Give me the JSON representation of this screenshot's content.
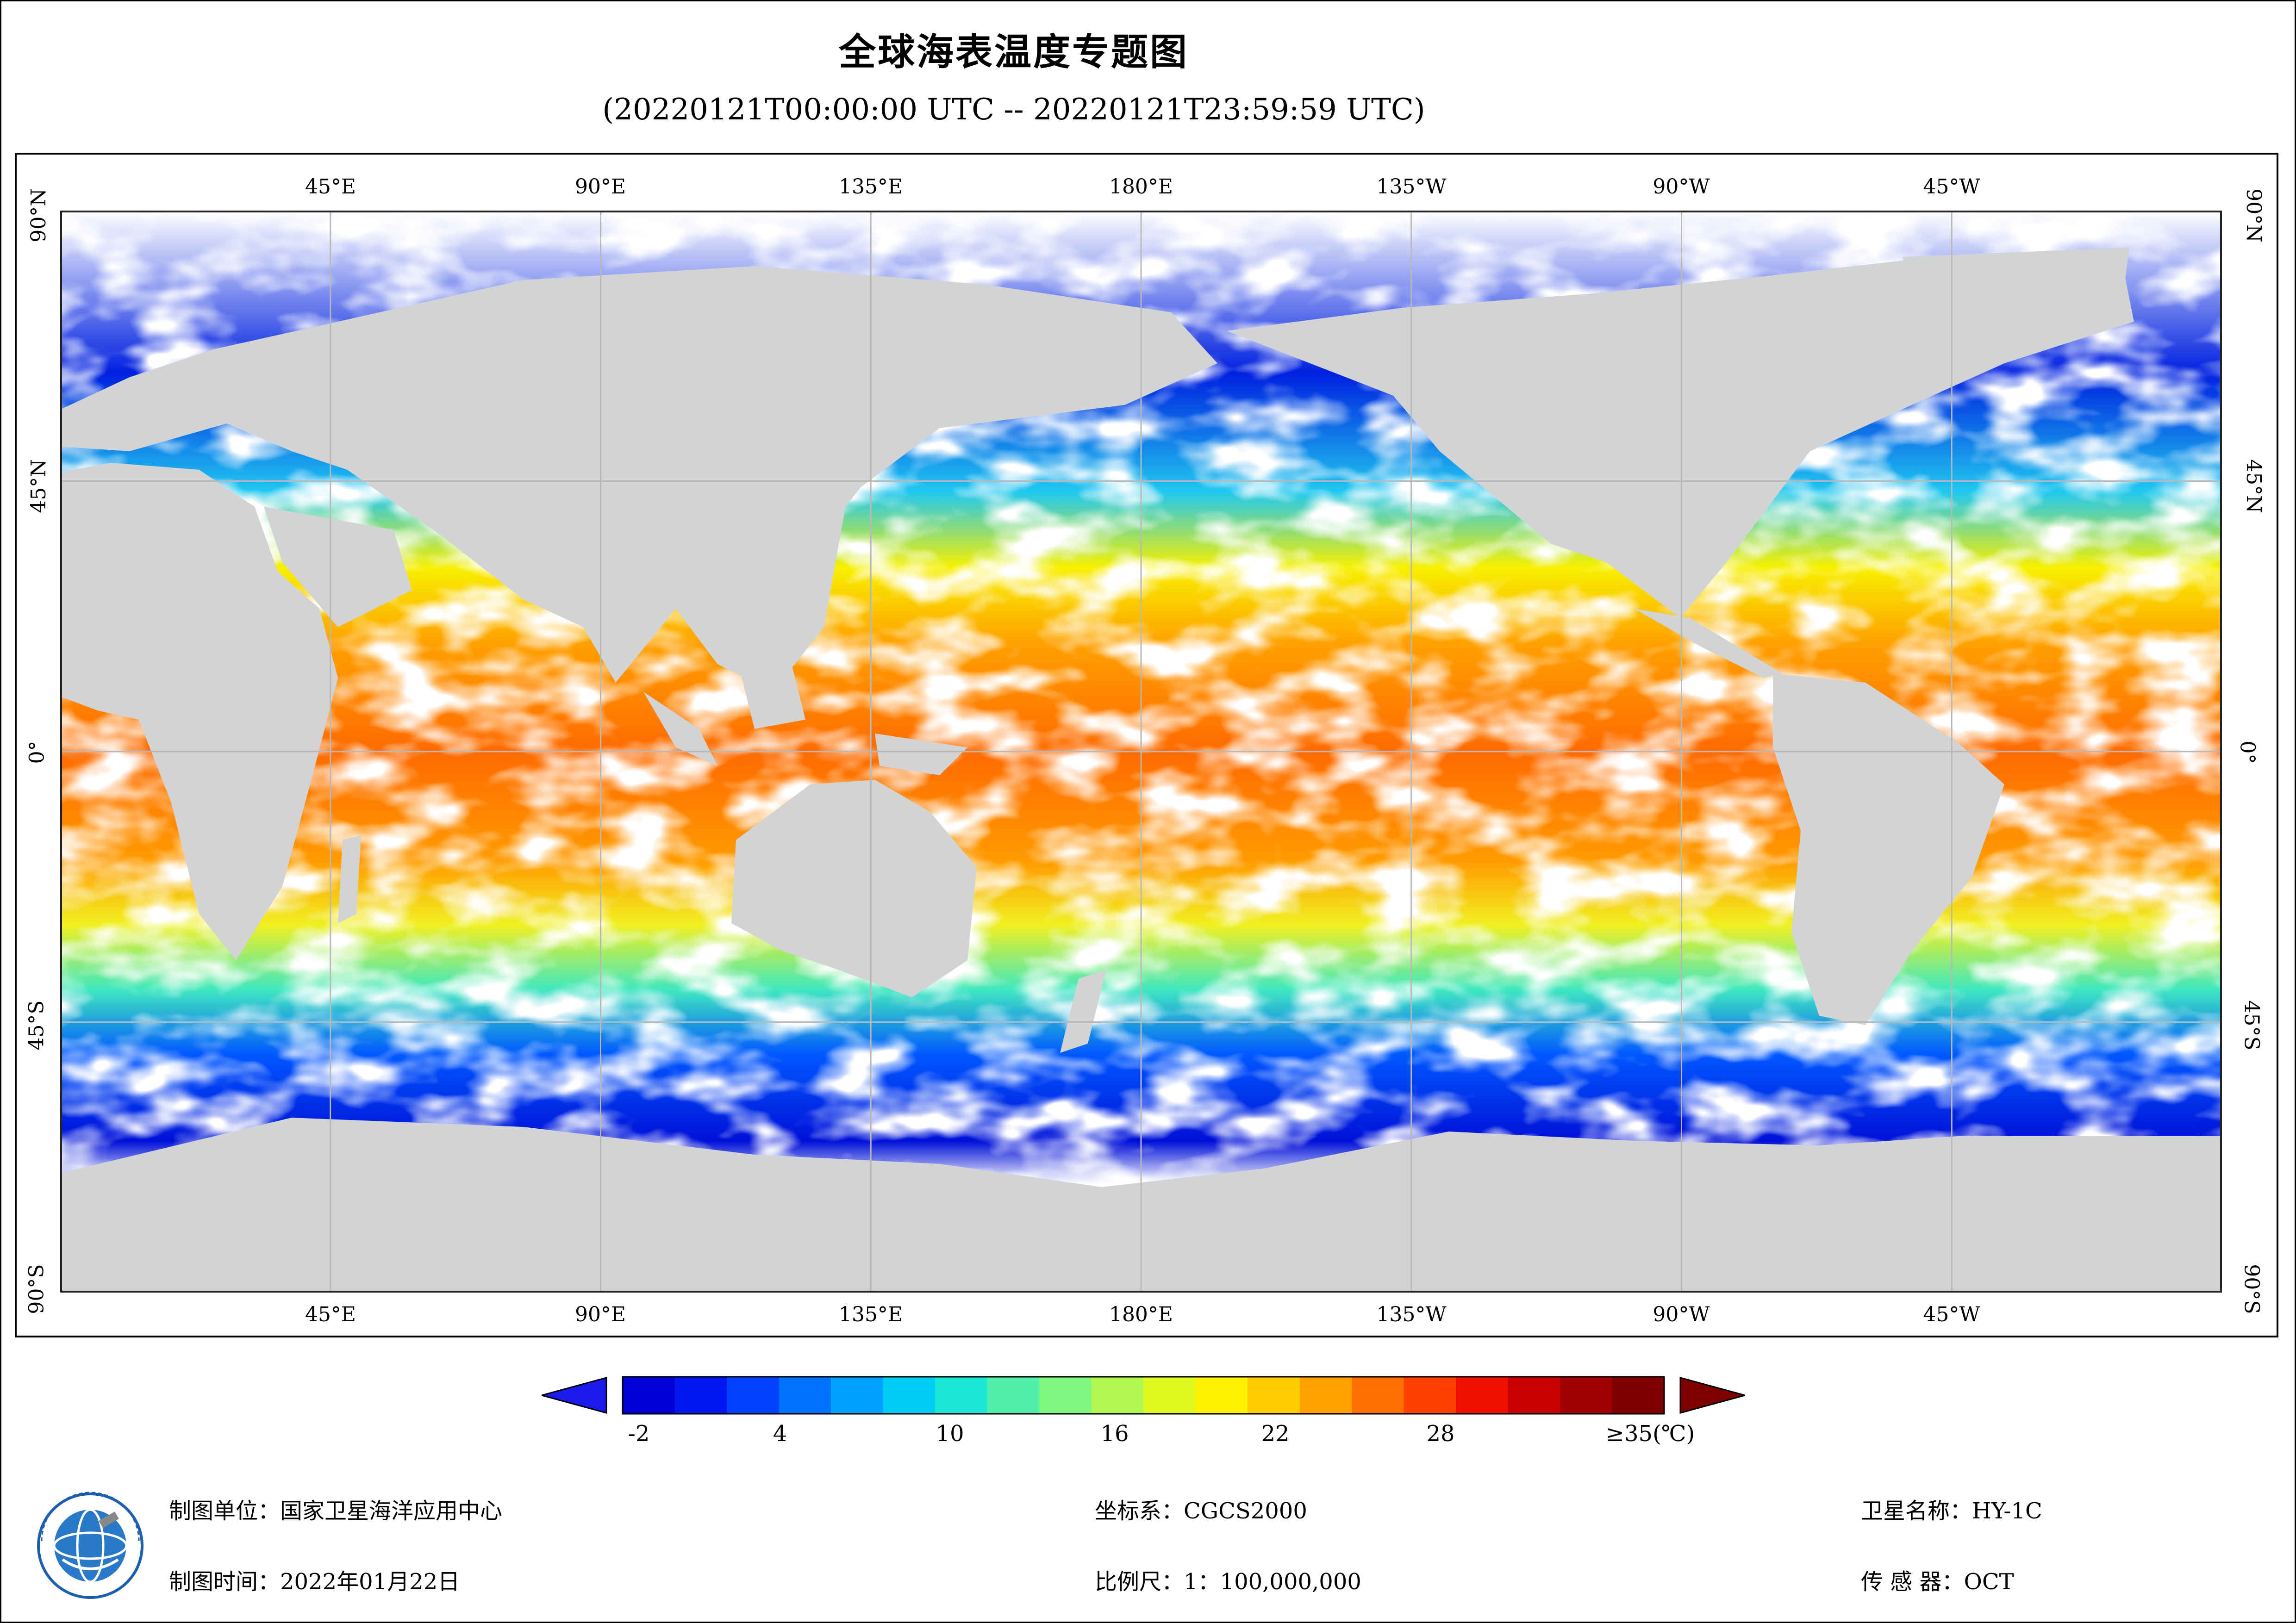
{
  "title": "全球海表温度专题图",
  "subtitle": "(20220121T00:00:00 UTC -- 20220121T23:59:59 UTC)",
  "map": {
    "lon_ticks": [
      "45°E",
      "90°E",
      "135°E",
      "180°E",
      "135°W",
      "90°W",
      "45°W"
    ],
    "lat_ticks": [
      "90°N",
      "45°N",
      "0°",
      "45°S",
      "90°S"
    ],
    "land_color": "#d2d3d5",
    "cloud_color": "#ffffff",
    "grid_color": "#b8b8b8"
  },
  "legend": {
    "labels": [
      "-2",
      "4",
      "10",
      "16",
      "22",
      "28",
      "≥35(℃)"
    ],
    "min_color": "#1a1aee",
    "max_color": "#7f0000",
    "colors": [
      "#0000d6",
      "#0016ef",
      "#0040ff",
      "#0070ff",
      "#00a0ff",
      "#00ccf4",
      "#1ce8d8",
      "#50f0a8",
      "#80f880",
      "#b0f850",
      "#e0f820",
      "#fff000",
      "#ffcc00",
      "#ffa000",
      "#ff7000",
      "#ff4000",
      "#f01000",
      "#c80000",
      "#a00000",
      "#7f0000"
    ]
  },
  "footer": {
    "unit_label": "制图单位：",
    "unit_value": "国家卫星海洋应用中心",
    "time_label": "制图时间：",
    "time_value": "2022年01月22日",
    "crs_label": "坐标系：",
    "crs_value": "CGCS2000",
    "scale_label": "比例尺：",
    "scale_value": "1：100,000,000",
    "satellite_label": "卫星名称：",
    "satellite_value": "HY-1C",
    "sensor_label": "传 感 器：",
    "sensor_value": "OCT"
  },
  "logo_icon": "nsoas-globe-logo-icon"
}
